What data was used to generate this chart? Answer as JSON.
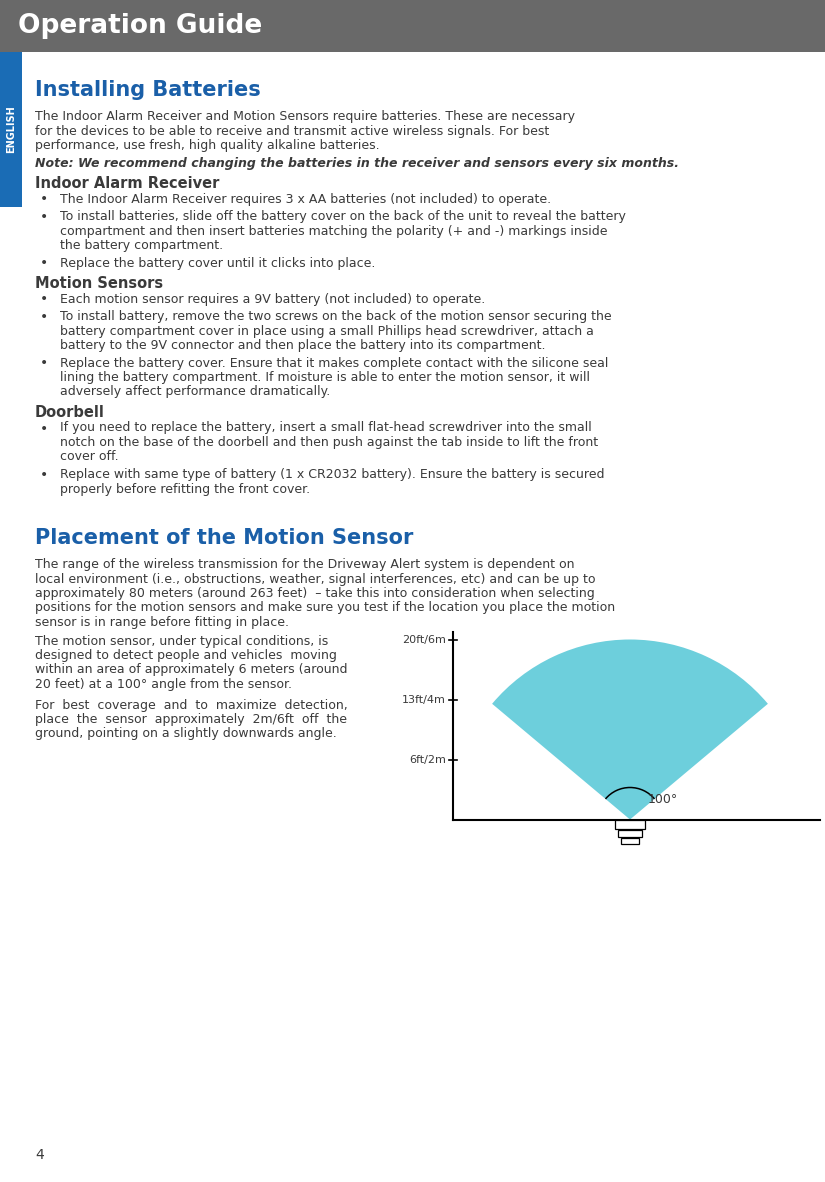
{
  "page_bg": "#ffffff",
  "header_bg": "#696969",
  "header_text": "Operation Guide",
  "header_text_color": "#ffffff",
  "sidebar_bg": "#1a6cb5",
  "sidebar_text": "ENGLISH",
  "sidebar_text_color": "#ffffff",
  "page_number": "4",
  "title1": "Installing Batteries",
  "title1_color": "#1a5fa8",
  "title2": "Placement of the Motion Sensor",
  "title2_color": "#1a5fa8",
  "section1": "Indoor Alarm Receiver",
  "section2": "Motion Sensors",
  "section3": "Doorbell",
  "body_color": "#3a3a3a",
  "diagram_color": "#6dcfdc",
  "angle_label": "100°",
  "dist_labels": [
    "20ft/6m",
    "13ft/4m",
    "6ft/2m"
  ]
}
